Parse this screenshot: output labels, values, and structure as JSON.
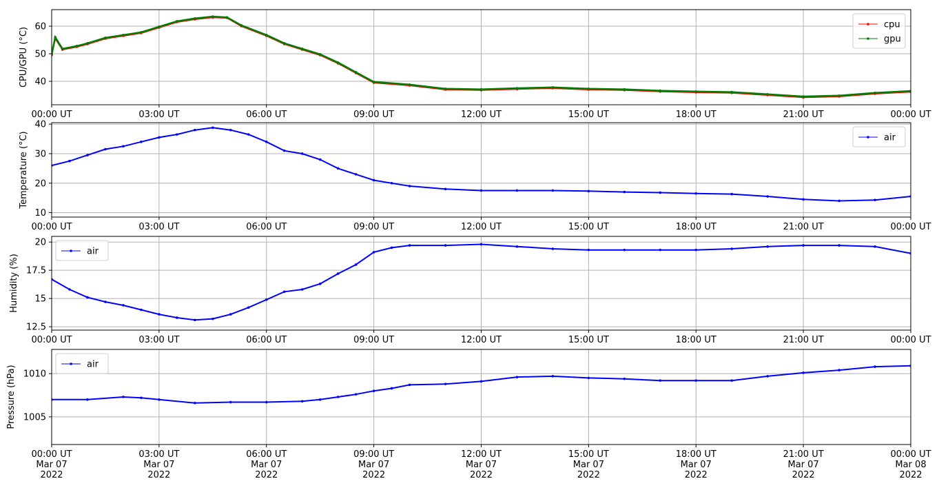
{
  "chart_data": [
    {
      "type": "line",
      "ylabel": "CPU/GPU (°C)",
      "ylim": [
        31.5,
        66
      ],
      "yticks": [
        40,
        50,
        60
      ],
      "xticks": [
        "00:00 UT",
        "03:00 UT",
        "06:00 UT",
        "09:00 UT",
        "12:00 UT",
        "15:00 UT",
        "18:00 UT",
        "21:00 UT",
        "00:00 UT"
      ],
      "x_hours": [
        0,
        0.1,
        0.3,
        0.7,
        1.0,
        1.5,
        2.0,
        2.5,
        3.0,
        3.5,
        4.0,
        4.5,
        4.9,
        5.3,
        6.0,
        6.5,
        7.0,
        7.5,
        8.0,
        8.5,
        9.0,
        10.0,
        11.0,
        12.0,
        13.0,
        14.0,
        15.0,
        16.0,
        17.0,
        18.0,
        19.0,
        20.0,
        21.0,
        22.0,
        23.0,
        24.0
      ],
      "grid": true,
      "legend": "top-right",
      "series": [
        {
          "name": "cpu",
          "color": "#ff0000",
          "values": [
            49.5,
            55.5,
            51.5,
            52.5,
            53.5,
            55.5,
            56.5,
            57.5,
            59.5,
            61.5,
            62.5,
            63.2,
            63.0,
            60.0,
            56.5,
            53.5,
            51.5,
            49.5,
            46.5,
            43.0,
            39.5,
            38.5,
            37.0,
            36.8,
            37.2,
            37.5,
            37.0,
            36.8,
            36.3,
            36.0,
            35.8,
            35.0,
            34.2,
            34.5,
            35.5,
            36.2
          ]
        },
        {
          "name": "gpu",
          "color": "#008000",
          "values": [
            49.8,
            56.0,
            51.8,
            52.8,
            53.8,
            55.8,
            56.8,
            57.8,
            59.8,
            61.8,
            62.8,
            63.5,
            63.2,
            60.3,
            56.8,
            53.8,
            51.8,
            49.8,
            46.8,
            43.3,
            39.8,
            38.8,
            37.3,
            37.1,
            37.5,
            37.8,
            37.3,
            37.1,
            36.6,
            36.3,
            36.1,
            35.3,
            34.5,
            34.8,
            35.8,
            36.5
          ]
        }
      ]
    },
    {
      "type": "line",
      "ylabel": "Temperature (°C)",
      "ylim": [
        8.5,
        40.5
      ],
      "yticks": [
        10,
        20,
        30,
        40
      ],
      "xticks": [
        "00:00 UT",
        "03:00 UT",
        "06:00 UT",
        "09:00 UT",
        "12:00 UT",
        "15:00 UT",
        "18:00 UT",
        "21:00 UT",
        "00:00 UT"
      ],
      "x_hours": [
        0,
        0.5,
        1.0,
        1.5,
        2.0,
        2.5,
        3.0,
        3.5,
        4.0,
        4.5,
        5.0,
        5.5,
        6.0,
        6.5,
        7.0,
        7.5,
        8.0,
        8.5,
        9.0,
        9.5,
        10.0,
        11.0,
        12.0,
        13.0,
        14.0,
        15.0,
        16.0,
        17.0,
        18.0,
        19.0,
        20.0,
        21.0,
        22.0,
        23.0,
        24.0
      ],
      "grid": true,
      "legend": "top-right",
      "series": [
        {
          "name": "air",
          "color": "#0000ff",
          "values": [
            26.0,
            27.5,
            29.5,
            31.5,
            32.5,
            34.0,
            35.5,
            36.5,
            38.0,
            38.8,
            38.0,
            36.5,
            34.0,
            31.0,
            30.0,
            28.0,
            25.0,
            23.0,
            21.0,
            20.0,
            19.0,
            18.0,
            17.5,
            17.5,
            17.5,
            17.3,
            17.0,
            16.8,
            16.5,
            16.3,
            15.5,
            14.5,
            14.0,
            14.3,
            15.5
          ]
        }
      ]
    },
    {
      "type": "line",
      "ylabel": "Humidity (%)",
      "ylim": [
        12.2,
        20.5
      ],
      "yticks": [
        12.5,
        15.0,
        17.5,
        20.0
      ],
      "xticks": [
        "00:00 UT",
        "03:00 UT",
        "06:00 UT",
        "09:00 UT",
        "12:00 UT",
        "15:00 UT",
        "18:00 UT",
        "21:00 UT",
        "00:00 UT"
      ],
      "x_hours": [
        0,
        0.5,
        1.0,
        1.5,
        2.0,
        2.5,
        3.0,
        3.5,
        4.0,
        4.5,
        5.0,
        5.5,
        6.0,
        6.5,
        7.0,
        7.5,
        8.0,
        8.5,
        9.0,
        9.5,
        10.0,
        11.0,
        12.0,
        13.0,
        14.0,
        15.0,
        16.0,
        17.0,
        18.0,
        19.0,
        20.0,
        21.0,
        22.0,
        23.0,
        24.0
      ],
      "grid": true,
      "legend": "top-left",
      "series": [
        {
          "name": "air",
          "color": "#0000ff",
          "values": [
            16.7,
            15.8,
            15.1,
            14.7,
            14.4,
            14.0,
            13.6,
            13.3,
            13.1,
            13.2,
            13.6,
            14.2,
            14.9,
            15.6,
            15.8,
            16.3,
            17.2,
            18.0,
            19.1,
            19.5,
            19.7,
            19.7,
            19.8,
            19.6,
            19.4,
            19.3,
            19.3,
            19.3,
            19.3,
            19.4,
            19.6,
            19.7,
            19.7,
            19.6,
            19.0
          ]
        }
      ]
    },
    {
      "type": "line",
      "ylabel": "Pressure (hPa)",
      "ylim": [
        1001.8,
        1012.8
      ],
      "yticks": [
        1005,
        1010
      ],
      "xticks": [
        "00:00 UT\nMar 07\n2022",
        "03:00 UT\nMar 07\n2022",
        "06:00 UT\nMar 07\n2022",
        "09:00 UT\nMar 07\n2022",
        "12:00 UT\nMar 07\n2022",
        "15:00 UT\nMar 07\n2022",
        "18:00 UT\nMar 07\n2022",
        "21:00 UT\nMar 07\n2022",
        "00:00 UT\nMar 08\n2022"
      ],
      "x_hours": [
        0,
        1.0,
        2.0,
        2.5,
        3.0,
        4.0,
        5.0,
        6.0,
        7.0,
        7.5,
        8.0,
        8.5,
        9.0,
        9.5,
        10.0,
        11.0,
        12.0,
        13.0,
        14.0,
        15.0,
        16.0,
        17.0,
        18.0,
        19.0,
        20.0,
        21.0,
        22.0,
        23.0,
        24.0
      ],
      "grid": true,
      "legend": "top-left",
      "series": [
        {
          "name": "air",
          "color": "#0000ff",
          "values": [
            1007.0,
            1007.0,
            1007.3,
            1007.2,
            1007.0,
            1006.6,
            1006.7,
            1006.7,
            1006.8,
            1007.0,
            1007.3,
            1007.6,
            1008.0,
            1008.3,
            1008.7,
            1008.8,
            1009.1,
            1009.6,
            1009.7,
            1009.5,
            1009.4,
            1009.2,
            1009.2,
            1009.2,
            1009.7,
            1010.1,
            1010.4,
            1010.8,
            1010.9
          ]
        }
      ]
    }
  ]
}
